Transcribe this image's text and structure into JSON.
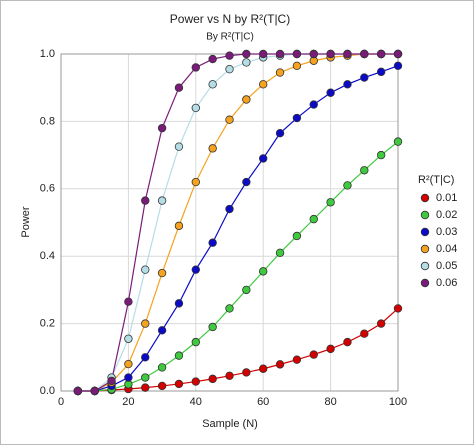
{
  "chart_data": {
    "type": "line",
    "title": "Power vs N by R²(T|C)",
    "subtitle": "By R²(T|C)",
    "x_label": "Sample (N)",
    "y_label": "Power",
    "legend_title": "R²(T|C)",
    "legend_position": "right",
    "grid": true,
    "x": [
      5,
      10,
      15,
      20,
      25,
      30,
      35,
      40,
      45,
      50,
      55,
      60,
      65,
      70,
      75,
      80,
      85,
      90,
      95,
      100
    ],
    "xlim": [
      0,
      100
    ],
    "xticks": [
      0,
      20,
      40,
      60,
      80,
      100
    ],
    "ylim": [
      0,
      1
    ],
    "yticks": [
      {
        "value": 0,
        "label": "0.0"
      },
      0.2,
      0.4,
      0.6,
      0.8,
      {
        "value": 1,
        "label": "1.0"
      }
    ],
    "series": [
      {
        "name": "0.01",
        "color": "#d40000",
        "values": [
          0,
          0,
          0.003,
          0.006,
          0.01,
          0.015,
          0.021,
          0.028,
          0.036,
          0.045,
          0.055,
          0.066,
          0.079,
          0.093,
          0.108,
          0.125,
          0.145,
          0.17,
          0.2,
          0.245
        ]
      },
      {
        "name": "0.02",
        "color": "#3fc93f",
        "values": [
          0,
          0,
          0.005,
          0.02,
          0.04,
          0.07,
          0.105,
          0.145,
          0.19,
          0.245,
          0.3,
          0.355,
          0.41,
          0.46,
          0.51,
          0.56,
          0.61,
          0.655,
          0.7,
          0.74
        ]
      },
      {
        "name": "0.03",
        "color": "#0a0ac8",
        "values": [
          0,
          0,
          0.015,
          0.04,
          0.1,
          0.18,
          0.26,
          0.36,
          0.44,
          0.54,
          0.62,
          0.69,
          0.765,
          0.81,
          0.85,
          0.885,
          0.91,
          0.93,
          0.947,
          0.965
        ]
      },
      {
        "name": "0.04",
        "color": "#f5a21e",
        "values": [
          0,
          0,
          0.025,
          0.08,
          0.2,
          0.35,
          0.49,
          0.62,
          0.72,
          0.805,
          0.865,
          0.91,
          0.945,
          0.965,
          0.98,
          0.99,
          0.995,
          1,
          1,
          1
        ]
      },
      {
        "name": "0.05",
        "color": "#b5dde6",
        "values": [
          0,
          0,
          0.04,
          0.155,
          0.36,
          0.565,
          0.725,
          0.84,
          0.91,
          0.955,
          0.975,
          0.99,
          0.995,
          1,
          1,
          1,
          1,
          1,
          1,
          1
        ]
      },
      {
        "name": "0.06",
        "color": "#7a1b7a",
        "values": [
          0,
          0,
          0.03,
          0.265,
          0.565,
          0.78,
          0.9,
          0.96,
          0.985,
          0.995,
          1,
          1,
          1,
          1,
          1,
          1,
          1,
          1,
          1,
          1
        ]
      }
    ]
  }
}
